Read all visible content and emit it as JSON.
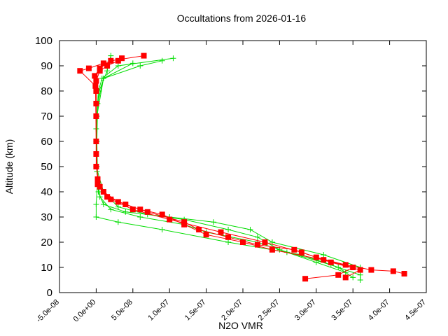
{
  "chart_data": {
    "type": "line",
    "title": "Occultations from 2026-01-16",
    "x_label": "N2O VMR",
    "y_label": "Altitude (km)",
    "xlim": [
      -5e-08,
      4.5e-07
    ],
    "ylim": [
      0,
      100
    ],
    "xticks": [
      {
        "value": -5e-08,
        "label": "-5.0e-08"
      },
      {
        "value": 0,
        "label": "0.0e+00"
      },
      {
        "value": 5e-08,
        "label": "5.0e-08"
      },
      {
        "value": 1e-07,
        "label": "1.0e-07"
      },
      {
        "value": 1.5e-07,
        "label": "1.5e-07"
      },
      {
        "value": 2e-07,
        "label": "2.0e-07"
      },
      {
        "value": 2.5e-07,
        "label": "2.5e-07"
      },
      {
        "value": 3e-07,
        "label": "3.0e-07"
      },
      {
        "value": 3.5e-07,
        "label": "3.5e-07"
      },
      {
        "value": 4e-07,
        "label": "4.0e-07"
      },
      {
        "value": 4.5e-07,
        "label": "4.5e-07"
      }
    ],
    "yticks": [
      0,
      10,
      20,
      30,
      40,
      50,
      60,
      70,
      80,
      90,
      100
    ],
    "series": [
      {
        "color": "#00dd00",
        "marker": "plus",
        "x": [
          3.6e-07,
          3.6e-07,
          3.1e-07,
          2.4e-07,
          2.1e-07,
          1.6e-07,
          1e-07,
          4e-08,
          1e-08,
          3e-09,
          1e-09,
          0,
          1e-09,
          3e-09,
          8e-09,
          3e-08,
          1.05e-07
        ],
        "values": [
          5,
          10,
          15,
          20,
          25,
          28,
          30,
          32,
          35,
          40,
          50,
          60,
          70,
          80,
          85,
          90,
          93
        ]
      },
      {
        "color": "#00dd00",
        "marker": "plus",
        "x": [
          3.5e-07,
          3.3e-07,
          2.8e-07,
          1.8e-07,
          9e-08,
          3e-08,
          0,
          0,
          2e-09,
          1e-09,
          2e-09,
          1e-08,
          6e-08,
          9e-08
        ],
        "values": [
          6,
          10,
          15,
          20,
          25,
          28,
          30,
          35,
          45,
          60,
          75,
          85,
          90,
          92
        ]
      },
      {
        "color": "#00dd00",
        "marker": "plus",
        "x": [
          3.4e-07,
          3e-07,
          2.6e-07,
          2.2e-07,
          1.5e-07,
          1.2e-07,
          6e-08,
          2e-08,
          5e-09,
          1e-09,
          0,
          4e-09,
          1.5e-08,
          2e-08
        ],
        "values": [
          8,
          12,
          16,
          20,
          24,
          27,
          30,
          33,
          38,
          48,
          65,
          80,
          88,
          94
        ]
      },
      {
        "color": "#00dd00",
        "marker": "plus",
        "x": [
          3.6e-07,
          3.2e-07,
          2.5e-07,
          2.2e-07,
          1.8e-07,
          1.2e-07,
          7e-08,
          3e-08,
          1e-08,
          0,
          1e-09,
          1e-08,
          5e-08
        ],
        "values": [
          7,
          11,
          17,
          22,
          25,
          29,
          31,
          34,
          40,
          50,
          70,
          85,
          91
        ]
      },
      {
        "color": "#ff0000",
        "marker": "square",
        "x": [
          2.85e-07,
          3.3e-07,
          3.5e-07,
          3.1e-07,
          2.4e-07,
          2e-07,
          1.5e-07,
          1.2e-07,
          9e-08,
          6e-08,
          3e-08,
          1e-08,
          2e-09,
          0,
          0,
          0,
          -2e-09,
          5e-09,
          2e-08,
          6.5e-08
        ],
        "values": [
          5.5,
          7,
          10,
          13,
          17,
          20,
          23,
          27,
          31,
          33,
          36,
          40,
          45,
          55,
          70,
          80,
          86,
          89,
          92,
          94
        ]
      },
      {
        "color": "#ff0000",
        "marker": "square",
        "x": [
          4.2e-07,
          4.05e-07,
          3.75e-07,
          3.4e-07,
          3e-07,
          2.7e-07,
          2.2e-07,
          1.8e-07,
          1.4e-07,
          1.2e-07,
          7e-08,
          4e-08,
          1.5e-08,
          2e-09,
          0,
          -1e-09,
          -2.2e-08,
          -1e-08,
          1e-08,
          3.5e-08
        ],
        "values": [
          7.5,
          8.5,
          9,
          11,
          14,
          17,
          19,
          22,
          25,
          28,
          32,
          35,
          38,
          43,
          60,
          82,
          88,
          89,
          91,
          93
        ]
      },
      {
        "color": "#ff0000",
        "marker": "square",
        "x": [
          3.4e-07,
          3.6e-07,
          3.2e-07,
          2.8e-07,
          2.3e-07,
          1.7e-07,
          1e-07,
          5e-08,
          2e-08,
          5e-09,
          0,
          0,
          0,
          5e-09,
          1.5e-08,
          3e-08
        ],
        "values": [
          6,
          9,
          12,
          16,
          20,
          24,
          29,
          33,
          37,
          42,
          50,
          75,
          84,
          88,
          90,
          92
        ]
      }
    ]
  }
}
